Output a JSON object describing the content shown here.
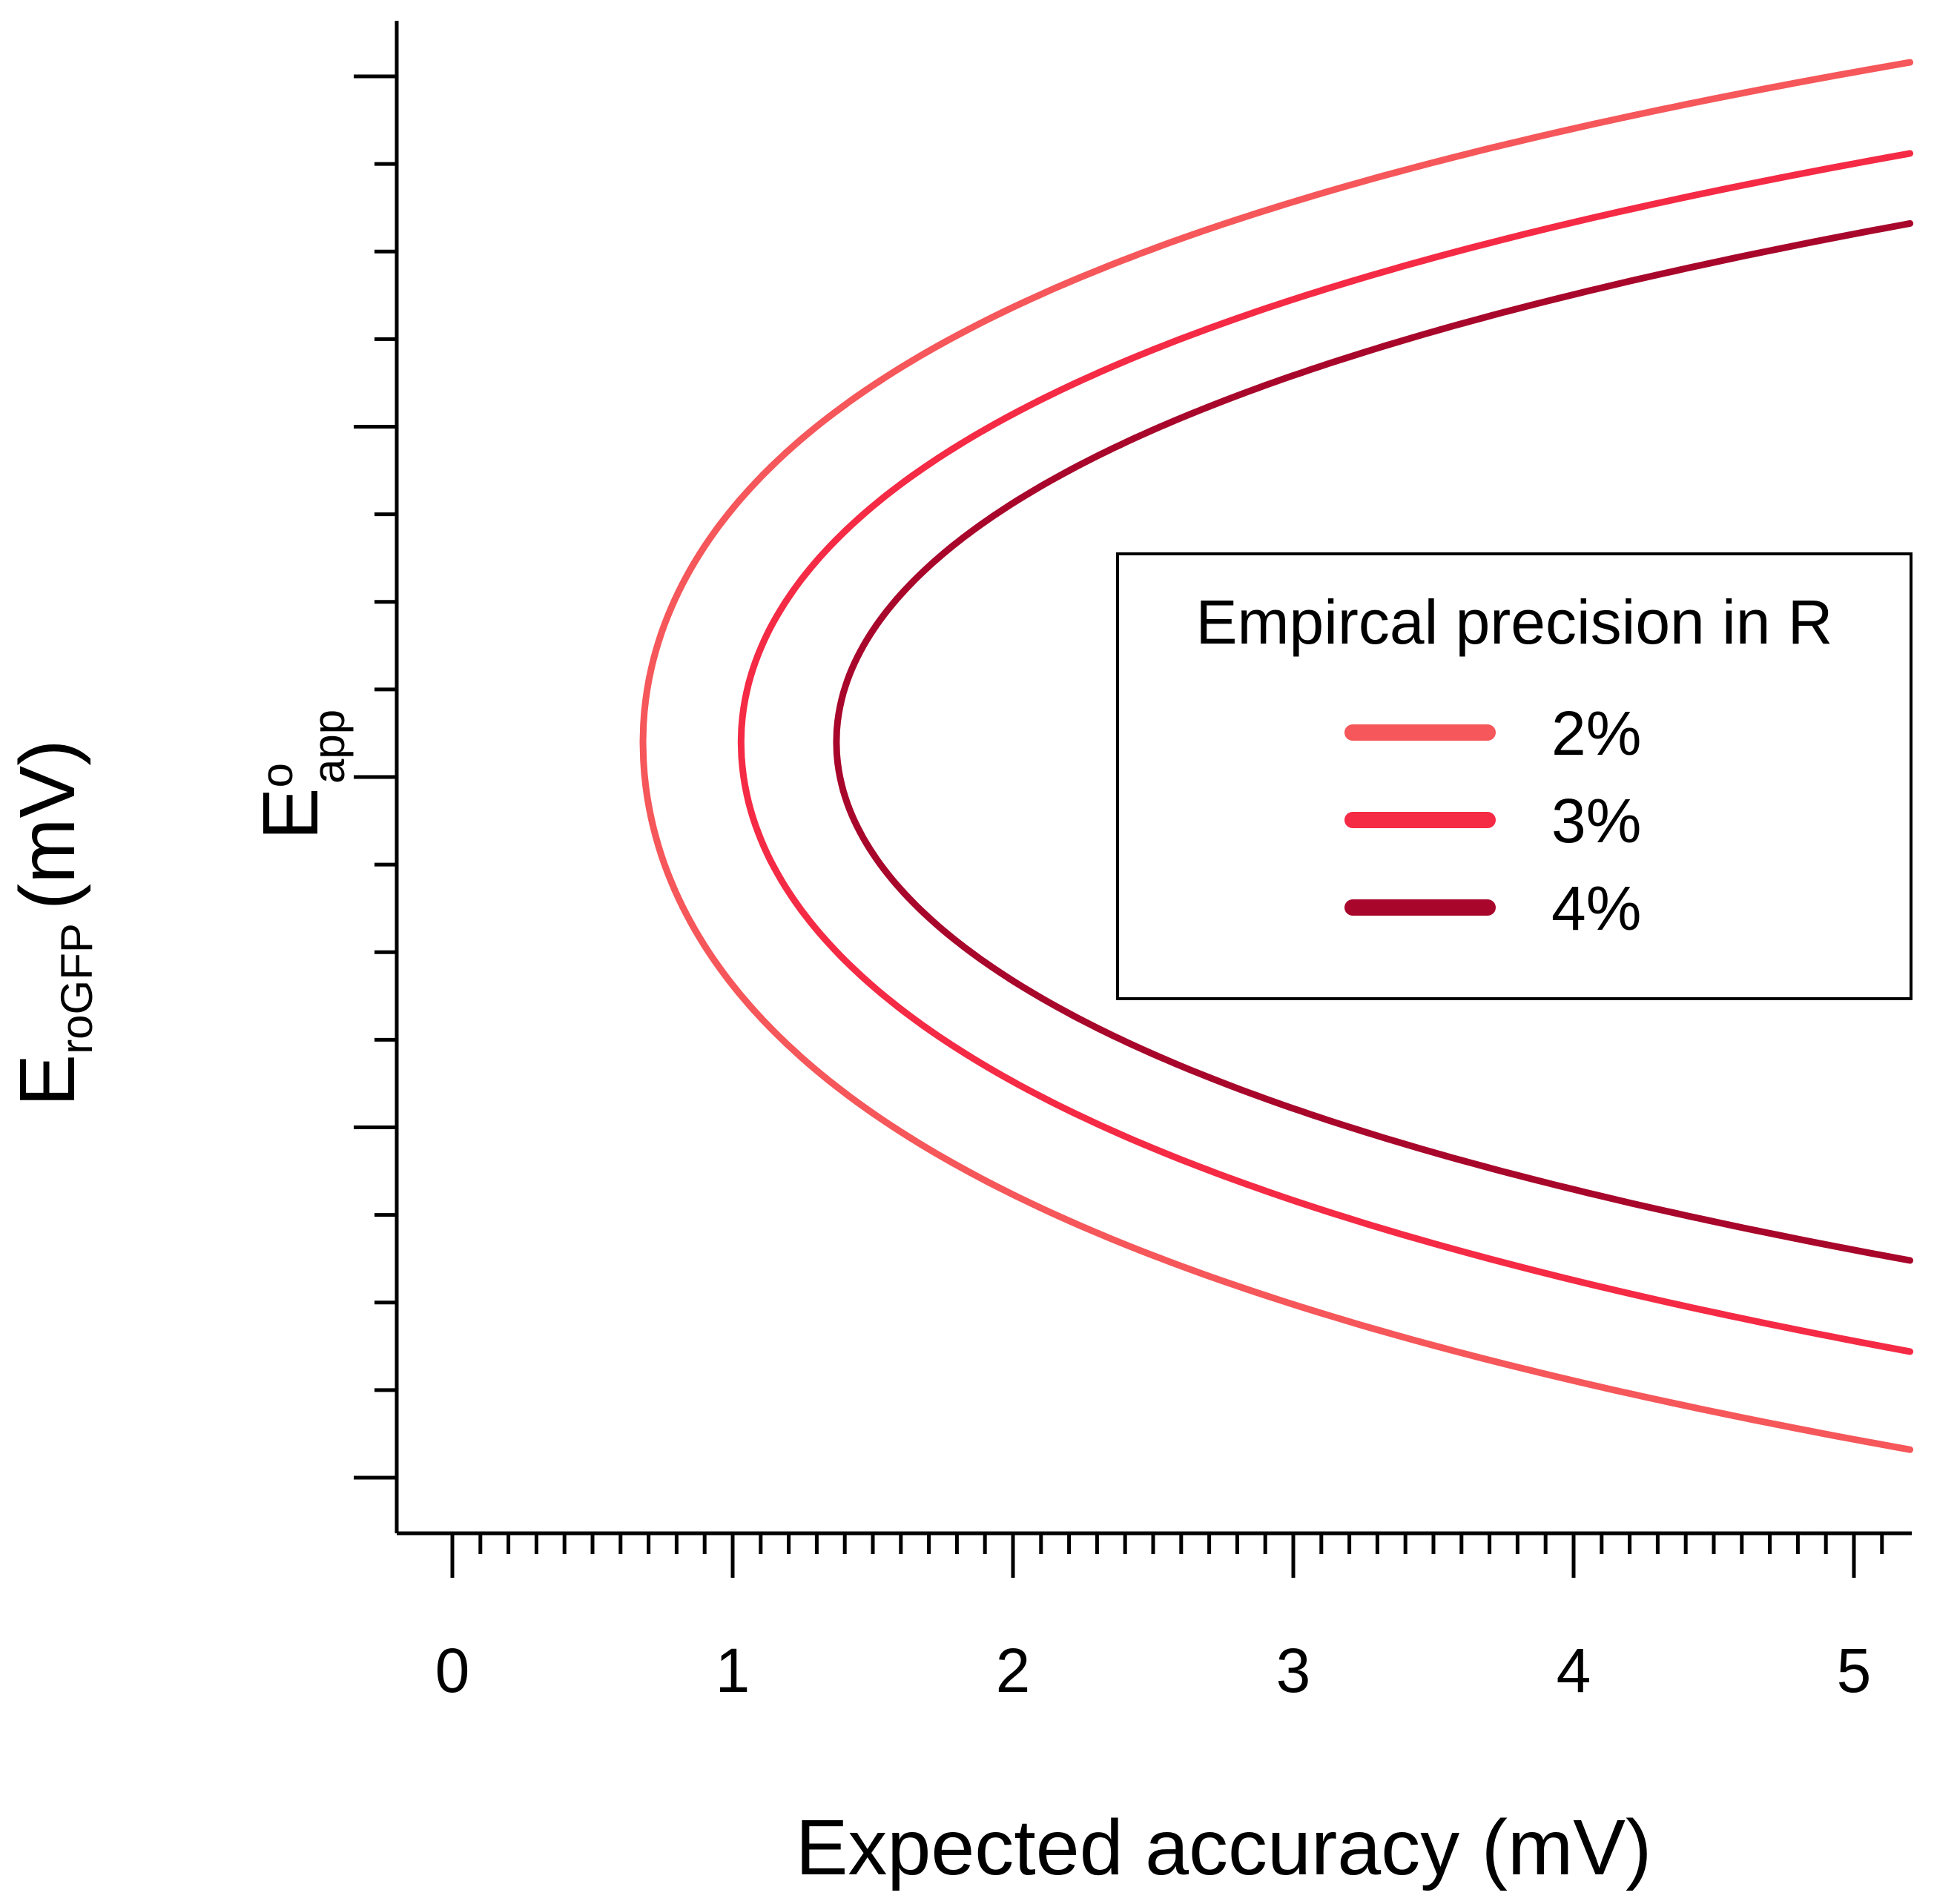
{
  "chart_data": {
    "type": "line",
    "xlabel": "Expected accuracy (mV)",
    "ylabel": {
      "outer": {
        "main": "E",
        "sub": "roGFP",
        "suffix": "(mV)"
      },
      "inner": {
        "main": "E",
        "sup": "o",
        "sub": "app"
      }
    },
    "xlim": [
      -0.2,
      5.2
    ],
    "ylim": [
      -1.04,
      1.04
    ],
    "x_ticks": [
      0,
      1,
      2,
      3,
      4,
      5
    ],
    "x_tick_labels": [
      "0",
      "1",
      "2",
      "3",
      "4",
      "5"
    ],
    "y_tick_labels_shown": false,
    "grid": false,
    "legend": {
      "title": "Empircal precision in R",
      "position": "right",
      "entries": [
        "2%",
        "3%",
        "4%"
      ]
    },
    "series": [
      {
        "name": "2%",
        "color": "#f5575a",
        "vertex_x": 0.68,
        "vertex_y": 0.05,
        "y_top_at_5.2": 1.02,
        "y_bottom_at_5.2": -0.96
      },
      {
        "name": "3%",
        "color": "#f52a45",
        "vertex_x": 1.03,
        "vertex_y": 0.05,
        "y_top_at_5.2": 0.89,
        "y_bottom_at_5.2": -0.82
      },
      {
        "name": "4%",
        "color": "#a8072b",
        "vertex_x": 1.37,
        "vertex_y": 0.05,
        "y_top_at_5.2": 0.79,
        "y_bottom_at_5.2": -0.69
      }
    ]
  }
}
